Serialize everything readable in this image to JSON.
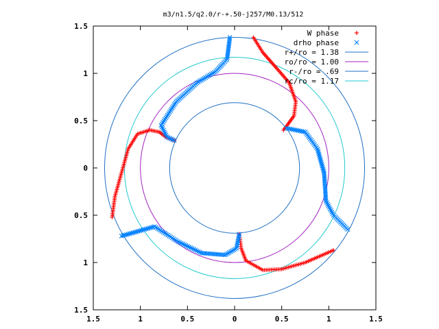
{
  "chart_data": {
    "type": "scatter",
    "title": "m3/n1.5/q2.0/r-+.50-j257/M0.13/512",
    "xlabel": "",
    "ylabel": "",
    "xlim": [
      -1.5,
      1.5
    ],
    "ylim": [
      -1.5,
      1.5
    ],
    "x_ticks": [
      -1.5,
      -1,
      -0.5,
      0,
      0.5,
      1,
      1.5
    ],
    "x_tick_labels": [
      "1.5",
      "1",
      "0.5",
      "0",
      "0.5",
      "1",
      "1.5"
    ],
    "y_ticks": [
      -1.5,
      -1,
      -0.5,
      0,
      0.5,
      1,
      1.5
    ],
    "y_tick_labels": [
      "1.5",
      "1",
      "0.5",
      "0",
      "0.5",
      "1",
      "1.5"
    ],
    "grid": false,
    "legend_position": "top-right",
    "series": [
      {
        "name": "W phase",
        "marker": "plus",
        "color": "#ff0000",
        "arms": [
          [
            [
              0.2,
              1.38
            ],
            [
              0.3,
              1.22
            ],
            [
              0.45,
              1.05
            ],
            [
              0.58,
              0.9
            ],
            [
              0.65,
              0.7
            ],
            [
              0.63,
              0.55
            ],
            [
              0.55,
              0.44
            ],
            [
              0.52,
              0.4
            ]
          ],
          [
            [
              -1.3,
              -0.52
            ],
            [
              -1.27,
              -0.3
            ],
            [
              -1.2,
              -0.05
            ],
            [
              -1.13,
              0.2
            ],
            [
              -1.03,
              0.36
            ],
            [
              -0.9,
              0.4
            ],
            [
              -0.8,
              0.38
            ],
            [
              -0.72,
              0.32
            ],
            [
              -0.64,
              0.29
            ]
          ],
          [
            [
              0.05,
              -0.7
            ],
            [
              0.07,
              -0.85
            ],
            [
              0.12,
              -0.98
            ],
            [
              0.3,
              -1.08
            ],
            [
              0.5,
              -1.07
            ],
            [
              0.75,
              -1.0
            ],
            [
              1.05,
              -0.87
            ]
          ]
        ]
      },
      {
        "name": "drho phase",
        "marker": "cross",
        "color": "#0080ff",
        "arms": [
          [
            [
              -0.05,
              1.38
            ],
            [
              -0.08,
              1.15
            ],
            [
              -0.2,
              1.02
            ],
            [
              -0.4,
              0.9
            ],
            [
              -0.62,
              0.7
            ],
            [
              -0.78,
              0.45
            ],
            [
              -0.72,
              0.33
            ],
            [
              -0.64,
              0.29
            ]
          ],
          [
            [
              0.55,
              0.42
            ],
            [
              0.75,
              0.38
            ],
            [
              0.88,
              0.2
            ],
            [
              0.95,
              -0.05
            ],
            [
              0.97,
              -0.35
            ],
            [
              1.05,
              -0.5
            ],
            [
              1.2,
              -0.65
            ]
          ],
          [
            [
              -1.2,
              -0.72
            ],
            [
              -0.85,
              -0.62
            ],
            [
              -0.6,
              -0.78
            ],
            [
              -0.35,
              -0.9
            ],
            [
              -0.1,
              -0.92
            ],
            [
              0.02,
              -0.85
            ],
            [
              0.05,
              -0.7
            ]
          ]
        ]
      }
    ],
    "circles": [
      {
        "name": "r+/ro = 1.38",
        "radius": 1.38,
        "color": "#1f6fc5"
      },
      {
        "name": "ro/ro = 1.00",
        "radius": 1.0,
        "color": "#a020c0"
      },
      {
        "name": "r-/ro = .69",
        "radius": 0.69,
        "color": "#1f6fc5"
      },
      {
        "name": "rc/ro = 1.17",
        "radius": 1.17,
        "color": "#20c8d0"
      }
    ]
  }
}
